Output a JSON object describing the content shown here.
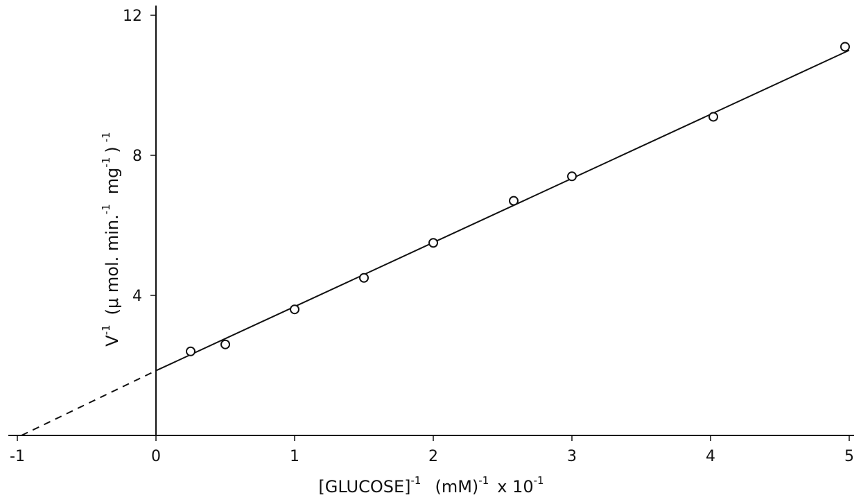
{
  "chart_data": {
    "type": "scatter",
    "title": "",
    "xlabel": {
      "main": "[GLUCOSE]",
      "main_sup": "-1",
      "unit": "(mM)",
      "unit_sup": "-1",
      "scale": "x 10",
      "scale_sup": "-1"
    },
    "ylabel": {
      "main": "V",
      "main_sup": "-1",
      "unit_a": "(μ mol. min.",
      "unit_a_sup": "-1",
      "unit_b": "mg",
      "unit_b_sup": "-1",
      "unit_c": ")",
      "unit_c_sup": "-1"
    },
    "xlim": [
      -1,
      5
    ],
    "ylim": [
      0,
      12
    ],
    "x_ticks": [
      -1,
      0,
      1,
      2,
      3,
      4,
      5
    ],
    "y_ticks": [
      4,
      8,
      12
    ],
    "x_tick_labels": [
      "-1",
      "0",
      "1",
      "2",
      "3",
      "4",
      "5"
    ],
    "y_tick_labels": [
      "4",
      "8",
      "12"
    ],
    "series": [
      {
        "marker": "open-circle",
        "x": [
          0.25,
          0.5,
          1.0,
          1.5,
          2.0,
          2.58,
          3.0,
          4.02,
          4.97
        ],
        "y": [
          2.4,
          2.6,
          3.6,
          4.5,
          5.5,
          6.7,
          7.4,
          9.1,
          11.1
        ]
      }
    ],
    "fit_line": {
      "x": [
        0,
        5
      ],
      "y": [
        1.85,
        11.0
      ]
    },
    "extrapolation": {
      "style": "dashed",
      "x": [
        -0.97,
        0
      ],
      "y": [
        0,
        1.85
      ]
    },
    "grid": false,
    "legend": "none"
  }
}
